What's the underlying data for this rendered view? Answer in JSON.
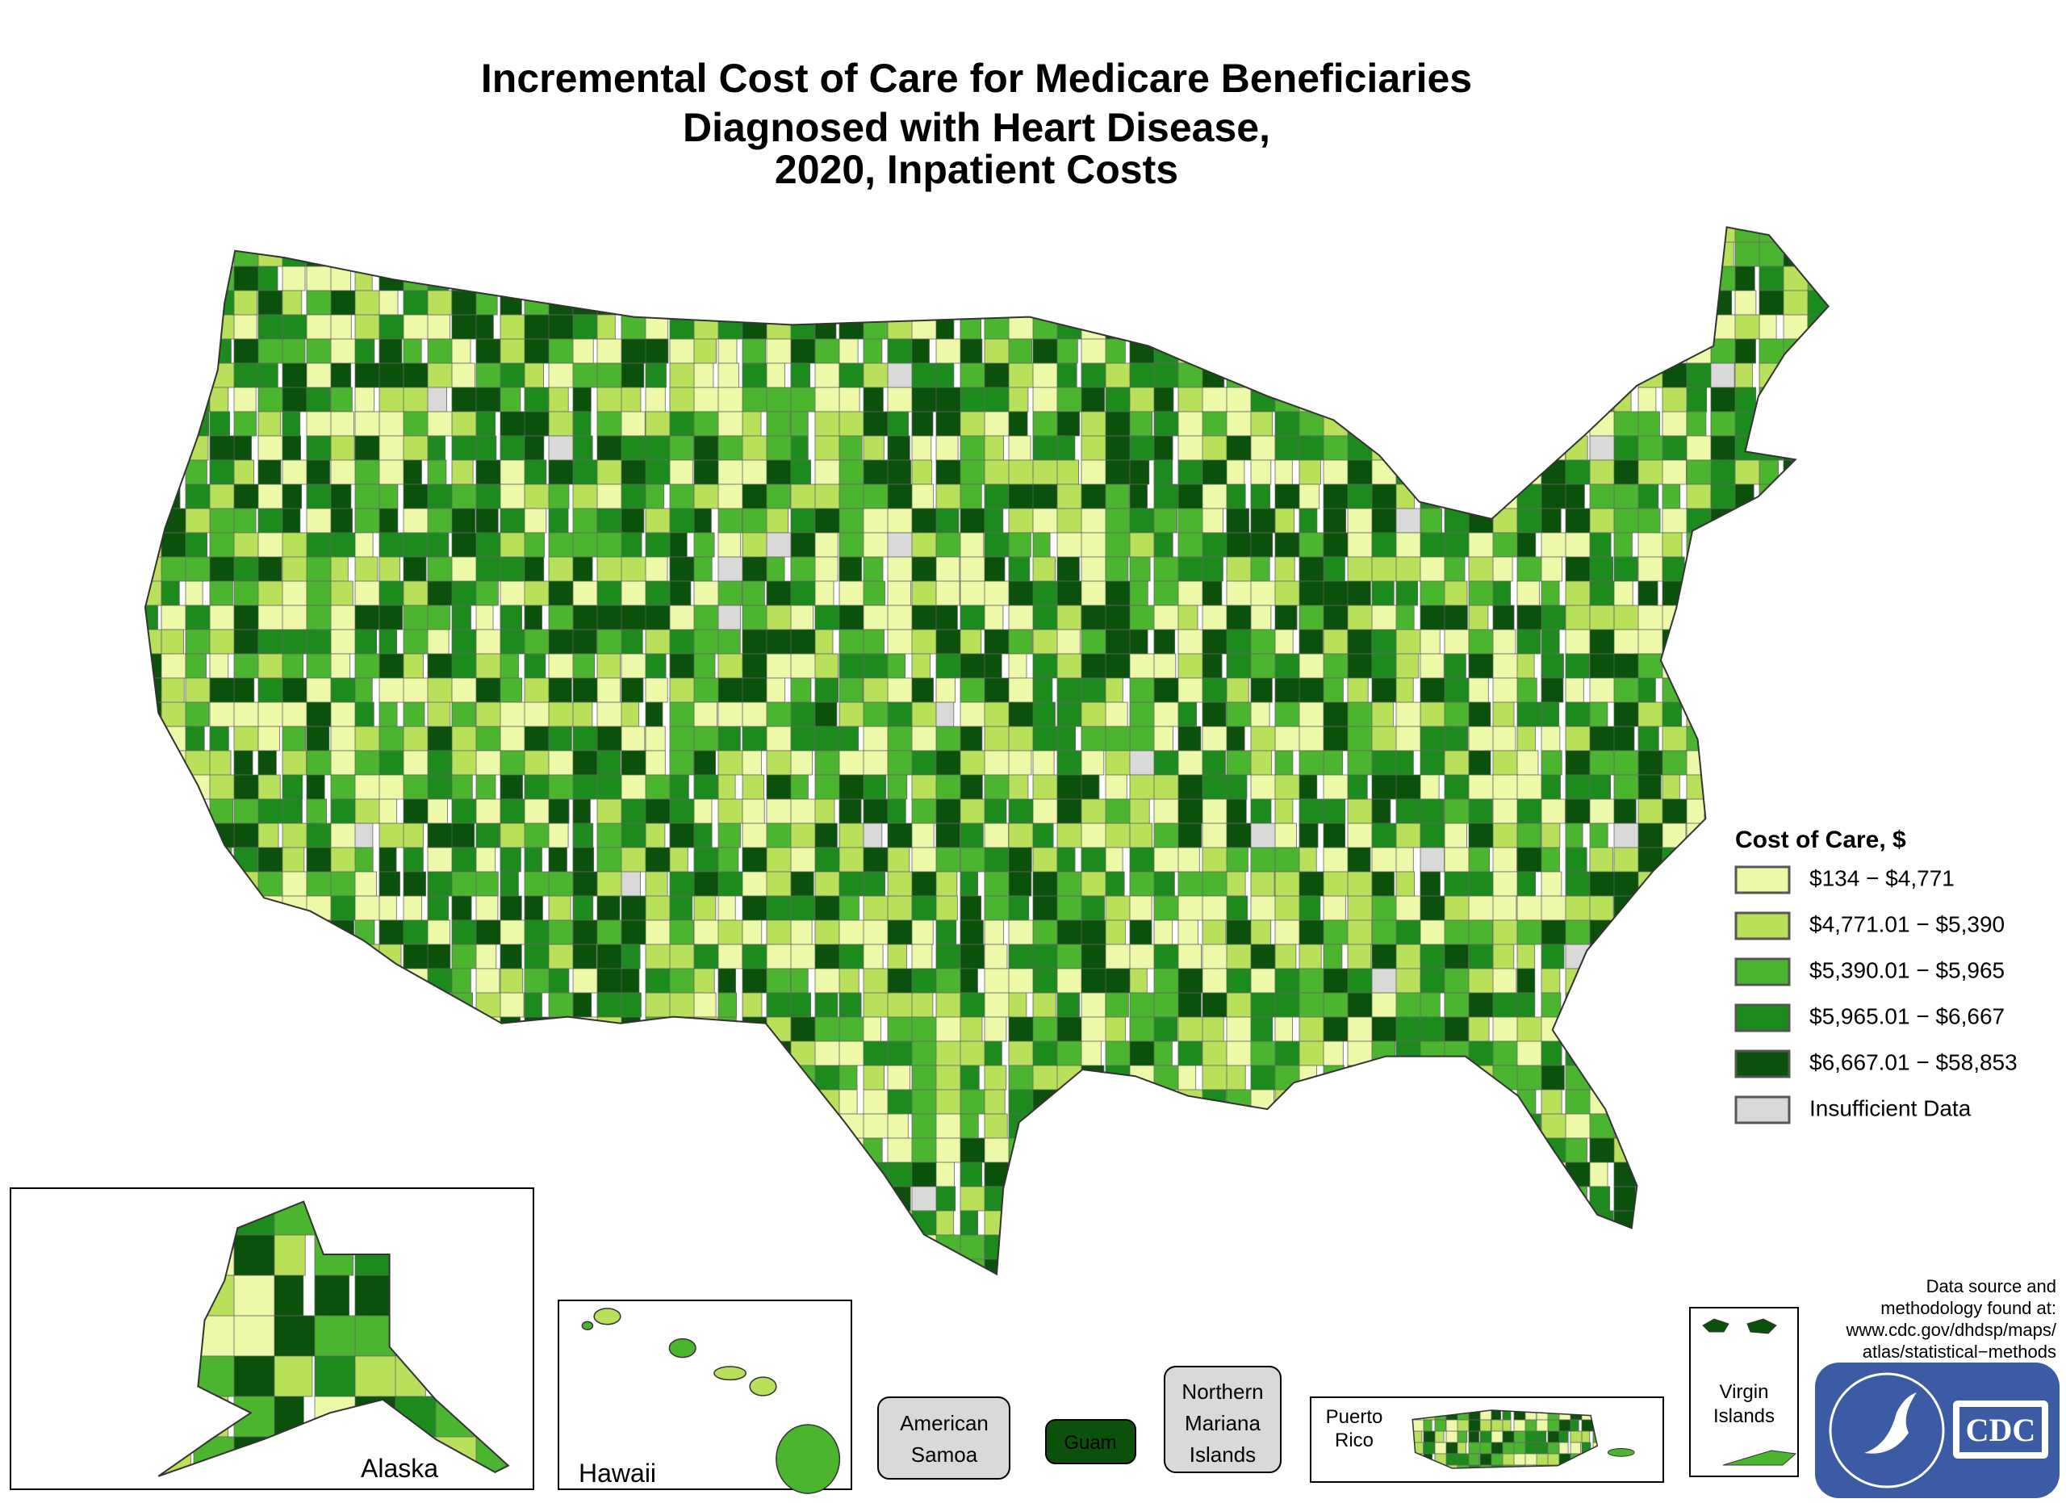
{
  "title": [
    "Incremental Cost of Care for Medicare Beneficiaries",
    "Diagnosed with Heart Disease,",
    "2020, Inpatient Costs"
  ],
  "legend": {
    "title": "Cost of Care, $",
    "items": [
      {
        "label": "$134 − $4,771",
        "color": "#edf8a8"
      },
      {
        "label": "$4,771.01 − $5,390",
        "color": "#b9e05a"
      },
      {
        "label": "$5,390.01 − $5,965",
        "color": "#4cb52f"
      },
      {
        "label": "$5,965.01 − $6,667",
        "color": "#1d8a1d"
      },
      {
        "label": "$6,667.01 − $58,853",
        "color": "#0b500b"
      },
      {
        "label": "Insufficient Data",
        "color": "#d9d9d9"
      }
    ]
  },
  "insets": {
    "alaska": "Alaska",
    "hawaii": "Hawaii",
    "american_samoa": [
      "American",
      "Samoa"
    ],
    "guam": "Guam",
    "northern_mariana": [
      "Northern",
      "Mariana",
      "Islands"
    ],
    "puerto_rico": [
      "Puerto",
      "Rico"
    ],
    "virgin_islands": [
      "Virgin",
      "Islands"
    ]
  },
  "source": [
    "Data source and",
    "methodology found at:",
    "www.cdc.gov/dhdsp/maps/",
    "atlas/statistical−methods"
  ],
  "logo": "CDC"
}
